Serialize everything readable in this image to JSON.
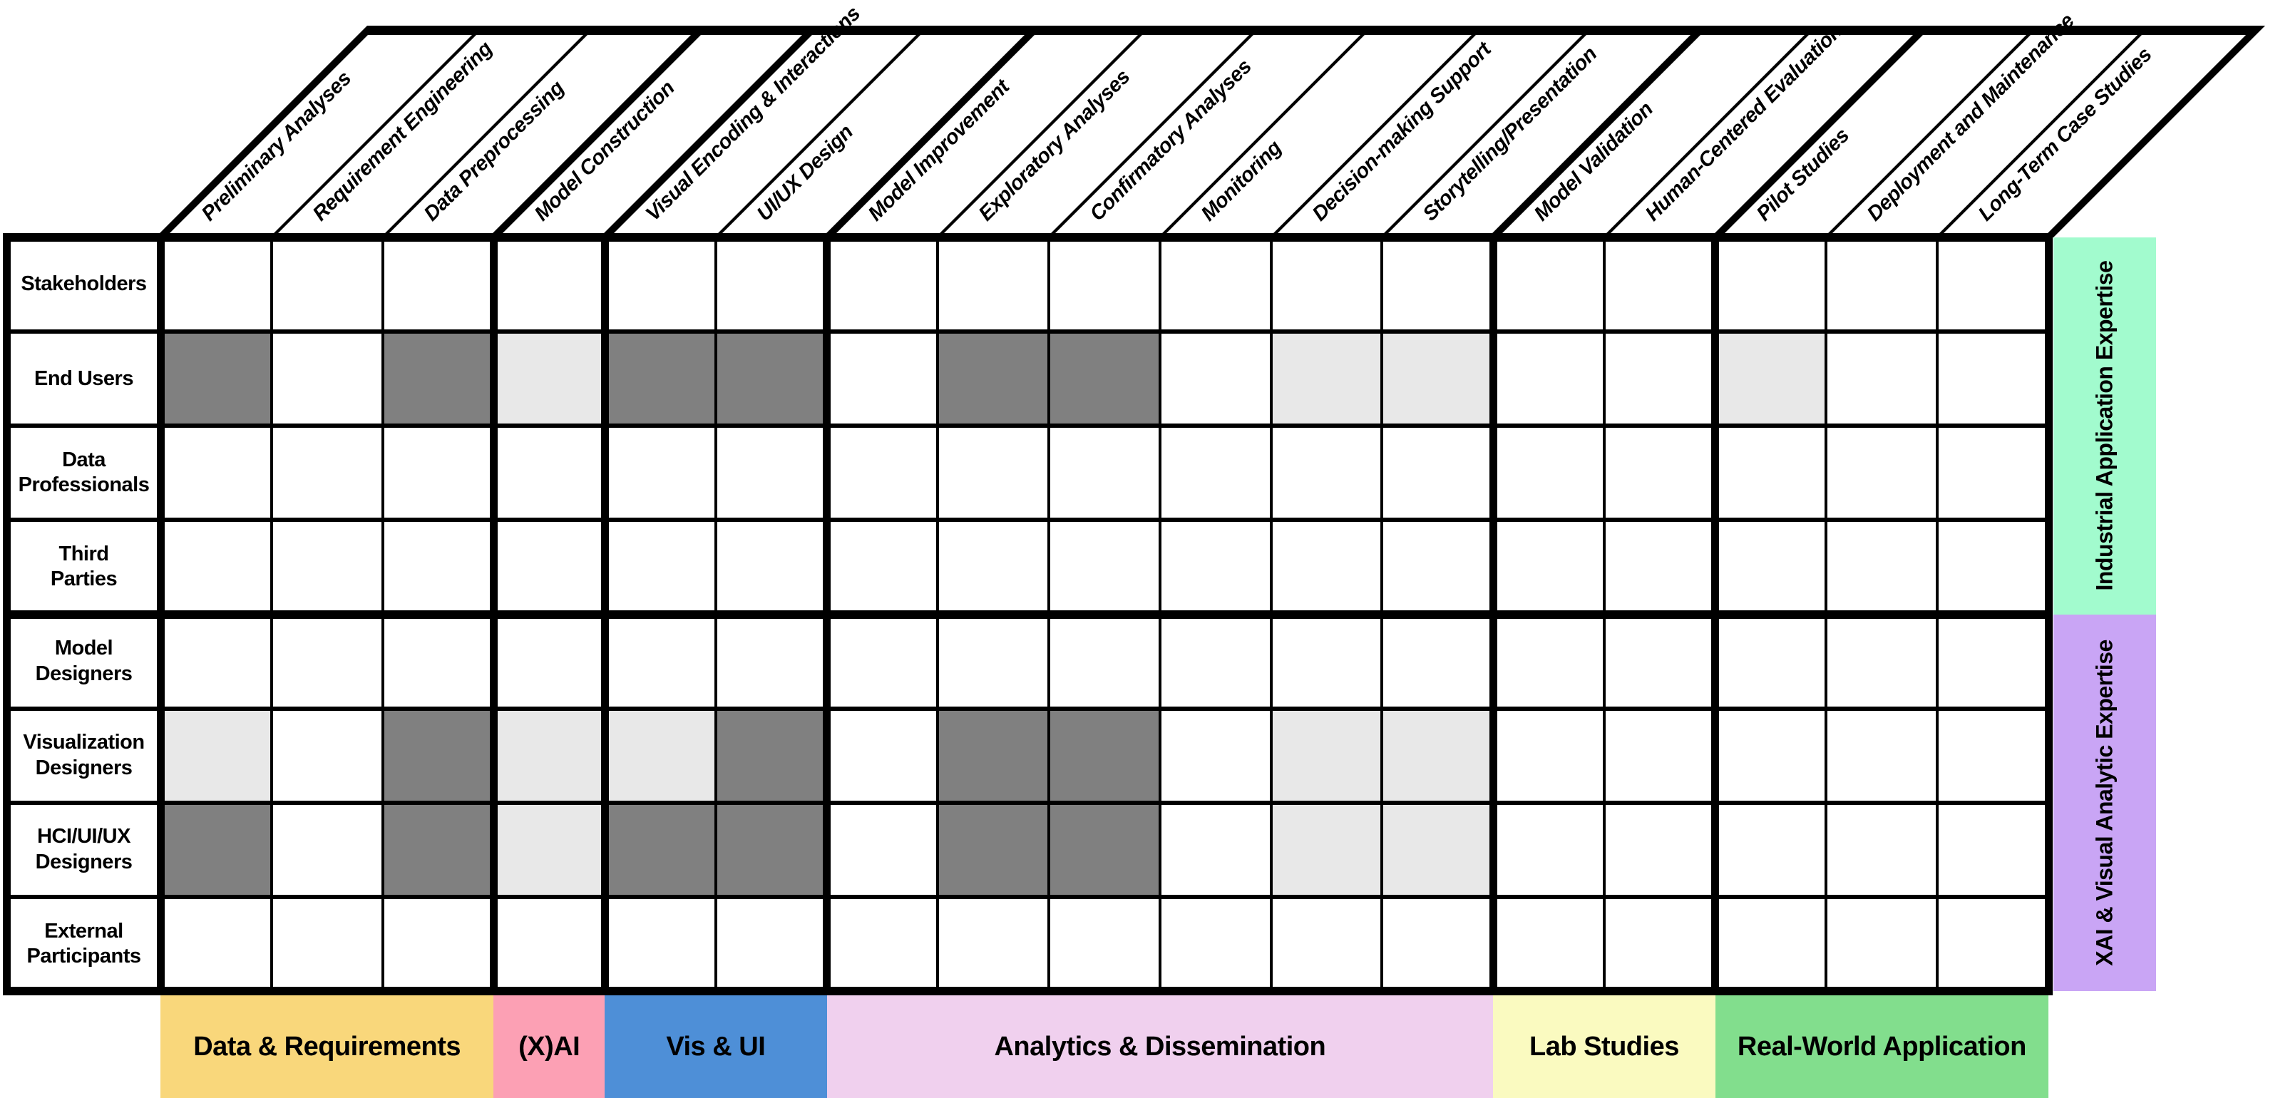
{
  "figure": {
    "description_visible_text_only": true,
    "colors": {
      "cell_levels": [
        "#FFFFFF",
        "#E8E8E8",
        "#808080"
      ],
      "grid": "#000000",
      "background": "#FFFFFF"
    }
  },
  "matrix": {
    "rows": [
      {
        "id": "stakeholders",
        "lines": [
          "Stakeholders"
        ]
      },
      {
        "id": "end-users",
        "lines": [
          "End Users"
        ]
      },
      {
        "id": "data-professionals",
        "lines": [
          "Data",
          "Professionals"
        ]
      },
      {
        "id": "third-parties",
        "lines": [
          "Third",
          "Parties"
        ]
      },
      {
        "id": "model-designers",
        "lines": [
          "Model",
          "Designers"
        ]
      },
      {
        "id": "visualization-designers",
        "lines": [
          "Visualization",
          "Designers"
        ]
      },
      {
        "id": "hci-ui-ux-designers",
        "lines": [
          "HCI/UI/UX",
          "Designers"
        ]
      },
      {
        "id": "external-participants",
        "lines": [
          "External",
          "Participants"
        ]
      }
    ],
    "columns": [
      "Preliminary Analyses",
      "Requirement Engineering",
      "Data Preprocessing",
      "Model Construction",
      "Visual Encoding & Interactions",
      "UI/UX Design",
      "Model Improvement",
      "Exploratory Analyses",
      "Confirmatory Analyses",
      "Monitoring",
      "Decision-making Support",
      "Storytelling/Presentation",
      "Model Validation",
      "Human-Centered Evaluation",
      "Pilot Studies",
      "Deployment and Maintenance",
      "Long-Term Case Studies"
    ],
    "values": [
      [
        0,
        0,
        0,
        0,
        0,
        0,
        0,
        0,
        0,
        0,
        0,
        0,
        0,
        0,
        0,
        0,
        0
      ],
      [
        2,
        0,
        2,
        1,
        2,
        2,
        0,
        2,
        2,
        0,
        1,
        1,
        0,
        0,
        1,
        0,
        0
      ],
      [
        0,
        0,
        0,
        0,
        0,
        0,
        0,
        0,
        0,
        0,
        0,
        0,
        0,
        0,
        0,
        0,
        0
      ],
      [
        0,
        0,
        0,
        0,
        0,
        0,
        0,
        0,
        0,
        0,
        0,
        0,
        0,
        0,
        0,
        0,
        0
      ],
      [
        0,
        0,
        0,
        0,
        0,
        0,
        0,
        0,
        0,
        0,
        0,
        0,
        0,
        0,
        0,
        0,
        0
      ],
      [
        1,
        0,
        2,
        1,
        1,
        2,
        0,
        2,
        2,
        0,
        1,
        1,
        0,
        0,
        0,
        0,
        0
      ],
      [
        2,
        0,
        2,
        1,
        2,
        2,
        0,
        2,
        2,
        0,
        1,
        1,
        0,
        0,
        0,
        0,
        0
      ],
      [
        0,
        0,
        0,
        0,
        0,
        0,
        0,
        0,
        0,
        0,
        0,
        0,
        0,
        0,
        0,
        0,
        0
      ]
    ],
    "column_groups": [
      {
        "id": "data-and-requirements",
        "label": "Data & Requirements",
        "span": 3,
        "color": "#F9D77B"
      },
      {
        "id": "x-ai",
        "label": "(X)AI",
        "span": 1,
        "color": "#FCA0B4"
      },
      {
        "id": "vis-and-ui",
        "label": "Vis & UI",
        "span": 2,
        "color": "#4E8FD7"
      },
      {
        "id": "analytics-and-dissemination",
        "label": "Analytics & Dissemination",
        "span": 6,
        "color": "#F0D0EE"
      },
      {
        "id": "lab-studies",
        "label": "Lab Studies",
        "span": 2,
        "color": "#FAFAC0"
      },
      {
        "id": "real-world-application",
        "label": "Real-World Application",
        "span": 3,
        "color": "#82DE8D"
      }
    ],
    "row_groups": [
      {
        "id": "industrial-application-expertise",
        "label": "Industrial Application Expertise",
        "span": 4,
        "color": "#A2FBCE"
      },
      {
        "id": "xai-and-visual-analytic-expertise",
        "label": "XAI & Visual Analytic Expertise",
        "span": 4,
        "color": "#C9A5F5"
      }
    ]
  },
  "chart_data": {
    "type": "heatmap",
    "title": "",
    "rows": [
      "Stakeholders",
      "End Users",
      "Data Professionals",
      "Third Parties",
      "Model Designers",
      "Visualization Designers",
      "HCI/UI/UX Designers",
      "External Participants"
    ],
    "columns": [
      "Preliminary Analyses",
      "Requirement Engineering",
      "Data Preprocessing",
      "Model Construction",
      "Visual Encoding & Interactions",
      "UI/UX Design",
      "Model Improvement",
      "Exploratory Analyses",
      "Confirmatory Analyses",
      "Monitoring",
      "Decision-making Support",
      "Storytelling/Presentation",
      "Model Validation",
      "Human-Centered Evaluation",
      "Pilot Studies",
      "Deployment and Maintenance",
      "Long-Term Case Studies"
    ],
    "values": [
      [
        0,
        0,
        0,
        0,
        0,
        0,
        0,
        0,
        0,
        0,
        0,
        0,
        0,
        0,
        0,
        0,
        0
      ],
      [
        2,
        0,
        2,
        1,
        2,
        2,
        0,
        2,
        2,
        0,
        1,
        1,
        0,
        0,
        1,
        0,
        0
      ],
      [
        0,
        0,
        0,
        0,
        0,
        0,
        0,
        0,
        0,
        0,
        0,
        0,
        0,
        0,
        0,
        0,
        0
      ],
      [
        0,
        0,
        0,
        0,
        0,
        0,
        0,
        0,
        0,
        0,
        0,
        0,
        0,
        0,
        0,
        0,
        0
      ],
      [
        0,
        0,
        0,
        0,
        0,
        0,
        0,
        0,
        0,
        0,
        0,
        0,
        0,
        0,
        0,
        0,
        0
      ],
      [
        1,
        0,
        2,
        1,
        1,
        2,
        0,
        2,
        2,
        0,
        1,
        1,
        0,
        0,
        0,
        0,
        0
      ],
      [
        2,
        0,
        2,
        1,
        2,
        2,
        0,
        2,
        2,
        0,
        1,
        1,
        0,
        0,
        0,
        0,
        0
      ],
      [
        0,
        0,
        0,
        0,
        0,
        0,
        0,
        0,
        0,
        0,
        0,
        0,
        0,
        0,
        0,
        0,
        0
      ]
    ],
    "value_scale": {
      "0": "white",
      "1": "light-gray #E8E8E8",
      "2": "dark-gray #808080"
    },
    "legend_position": "none"
  }
}
